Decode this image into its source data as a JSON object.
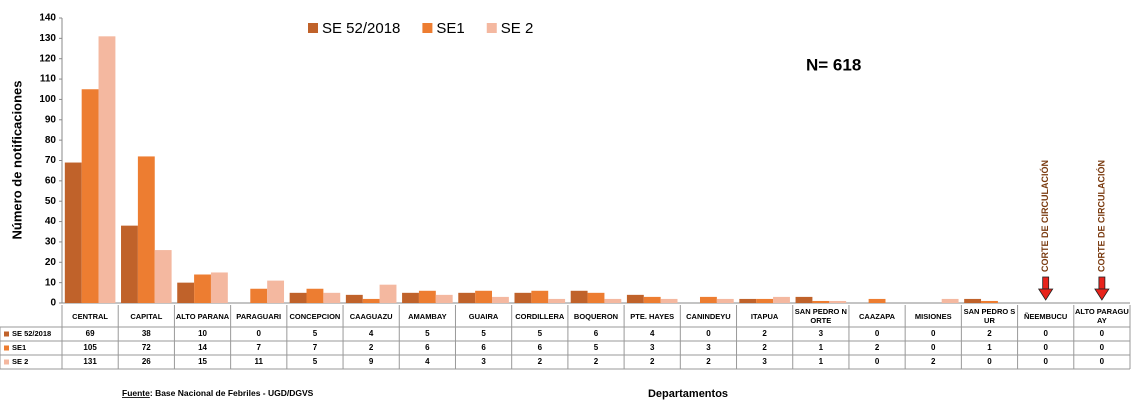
{
  "chart_data": {
    "type": "bar",
    "y_label": "Número de notificaciones",
    "x_label": "Departamentos",
    "annotation_total": "N= 618",
    "annotations": [
      "CORTE DE CIRCULACIÓN",
      "CORTE DE CIRCULACIÓN"
    ],
    "source_label": "Fuente",
    "source": ": Base Nacional de  Febriles - UGD/DGVS",
    "categories": [
      "CENTRAL",
      "CAPITAL",
      "ALTO PARANA",
      "PARAGUARI",
      "CONCEPCION",
      "CAAGUAZU",
      "AMAMBAY",
      "GUAIRA",
      "CORDILLERA",
      "BOQUERON",
      "PTE. HAYES",
      "CANINDEYU",
      "ITAPUA",
      "SAN PEDRO NORTE",
      "CAAZAPA",
      "MISIONES",
      "SAN PEDRO SUR",
      "ÑEEMBUCU",
      "ALTO PARAGUAY"
    ],
    "series": [
      {
        "name": "SE 52/2018",
        "color": "#c0622a",
        "values": [
          69,
          38,
          10,
          0,
          5,
          4,
          5,
          5,
          5,
          6,
          4,
          0,
          2,
          3,
          0,
          0,
          2,
          0,
          0
        ]
      },
      {
        "name": "SE1",
        "color": "#ed7d31",
        "values": [
          105,
          72,
          14,
          7,
          7,
          2,
          6,
          6,
          6,
          5,
          3,
          3,
          2,
          1,
          2,
          0,
          1,
          0,
          0
        ]
      },
      {
        "name": "SE 2",
        "color": "#f4b8a0",
        "values": [
          131,
          26,
          15,
          11,
          5,
          9,
          4,
          3,
          2,
          2,
          2,
          2,
          3,
          1,
          0,
          2,
          0,
          0,
          0
        ]
      }
    ],
    "ylim": [
      0,
      140
    ],
    "yticks": [
      0,
      10,
      20,
      30,
      40,
      50,
      60,
      70,
      80,
      90,
      100,
      110,
      120,
      130,
      140
    ],
    "grid": false
  }
}
